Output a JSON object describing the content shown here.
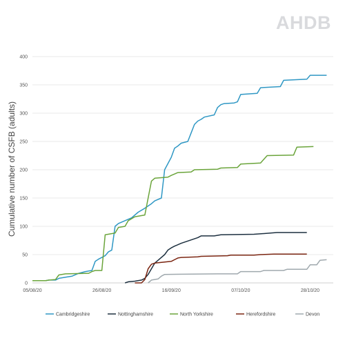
{
  "logo": {
    "text": "AHDB",
    "color": "#d9dadd"
  },
  "chart_data": {
    "type": "line",
    "title": "",
    "xlabel": "",
    "ylabel": "Cumulative number of CSFB (adults)",
    "ylim": [
      0,
      400
    ],
    "y_ticks": [
      0,
      50,
      100,
      150,
      200,
      250,
      300,
      350,
      400
    ],
    "xlim": [
      "2020-08-05",
      "2020-11-04"
    ],
    "x_ticks": [
      {
        "date": "2020-08-05",
        "label": "05/08/20"
      },
      {
        "date": "2020-08-26",
        "label": "26/08/20"
      },
      {
        "date": "2020-09-16",
        "label": "16/09/20"
      },
      {
        "date": "2020-10-07",
        "label": "07/10/20"
      },
      {
        "date": "2020-10-28",
        "label": "28/10/20"
      }
    ],
    "grid": "horizontal",
    "legend": "bottom",
    "series": [
      {
        "name": "Cambridgeshire",
        "color": "#2e97c4",
        "points": [
          [
            "2020-08-05",
            4
          ],
          [
            "2020-08-09",
            4
          ],
          [
            "2020-08-10",
            5
          ],
          [
            "2020-08-12",
            5
          ],
          [
            "2020-08-13",
            8
          ],
          [
            "2020-08-15",
            10
          ],
          [
            "2020-08-17",
            12
          ],
          [
            "2020-08-19",
            17
          ],
          [
            "2020-08-21",
            20
          ],
          [
            "2020-08-23",
            22
          ],
          [
            "2020-08-24",
            38
          ],
          [
            "2020-08-25",
            42
          ],
          [
            "2020-08-26",
            45
          ],
          [
            "2020-08-27",
            48
          ],
          [
            "2020-08-28",
            55
          ],
          [
            "2020-08-29",
            58
          ],
          [
            "2020-08-30",
            100
          ],
          [
            "2020-08-31",
            105
          ],
          [
            "2020-09-02",
            110
          ],
          [
            "2020-09-04",
            115
          ],
          [
            "2020-09-06",
            125
          ],
          [
            "2020-09-08",
            132
          ],
          [
            "2020-09-10",
            140
          ],
          [
            "2020-09-11",
            145
          ],
          [
            "2020-09-13",
            150
          ],
          [
            "2020-09-14",
            200
          ],
          [
            "2020-09-16",
            222
          ],
          [
            "2020-09-17",
            238
          ],
          [
            "2020-09-18",
            242
          ],
          [
            "2020-09-19",
            247
          ],
          [
            "2020-09-21",
            250
          ],
          [
            "2020-09-22",
            265
          ],
          [
            "2020-09-23",
            280
          ],
          [
            "2020-09-24",
            286
          ],
          [
            "2020-09-25",
            289
          ],
          [
            "2020-09-26",
            293
          ],
          [
            "2020-09-29",
            297
          ],
          [
            "2020-09-30",
            310
          ],
          [
            "2020-10-01",
            315
          ],
          [
            "2020-10-02",
            317
          ],
          [
            "2020-10-05",
            318
          ],
          [
            "2020-10-06",
            320
          ],
          [
            "2020-10-07",
            333
          ],
          [
            "2020-10-12",
            335
          ],
          [
            "2020-10-13",
            345
          ],
          [
            "2020-10-19",
            347
          ],
          [
            "2020-10-20",
            358
          ],
          [
            "2020-10-27",
            360
          ],
          [
            "2020-10-28",
            367
          ],
          [
            "2020-11-02",
            367
          ]
        ]
      },
      {
        "name": "Nottinghamshire",
        "color": "#1c2f3f",
        "points": [
          [
            "2020-09-02",
            0
          ],
          [
            "2020-09-03",
            2
          ],
          [
            "2020-09-05",
            3
          ],
          [
            "2020-09-07",
            5
          ],
          [
            "2020-09-08",
            8
          ],
          [
            "2020-09-09",
            15
          ],
          [
            "2020-09-10",
            25
          ],
          [
            "2020-09-11",
            35
          ],
          [
            "2020-09-12",
            40
          ],
          [
            "2020-09-14",
            50
          ],
          [
            "2020-09-15",
            58
          ],
          [
            "2020-09-16",
            62
          ],
          [
            "2020-09-17",
            65
          ],
          [
            "2020-09-19",
            70
          ],
          [
            "2020-09-21",
            74
          ],
          [
            "2020-09-24",
            80
          ],
          [
            "2020-09-25",
            83
          ],
          [
            "2020-09-29",
            83
          ],
          [
            "2020-10-01",
            85
          ],
          [
            "2020-10-11",
            86
          ],
          [
            "2020-10-16",
            88
          ],
          [
            "2020-10-18",
            89
          ],
          [
            "2020-10-27",
            89
          ]
        ]
      },
      {
        "name": "North Yorkshire",
        "color": "#6aa43a",
        "points": [
          [
            "2020-08-05",
            4
          ],
          [
            "2020-08-09",
            4
          ],
          [
            "2020-08-10",
            5
          ],
          [
            "2020-08-12",
            6
          ],
          [
            "2020-08-13",
            14
          ],
          [
            "2020-08-15",
            16
          ],
          [
            "2020-08-22",
            17
          ],
          [
            "2020-08-23",
            20
          ],
          [
            "2020-08-24",
            22
          ],
          [
            "2020-08-26",
            22
          ],
          [
            "2020-08-27",
            85
          ],
          [
            "2020-08-30",
            88
          ],
          [
            "2020-08-31",
            98
          ],
          [
            "2020-09-02",
            100
          ],
          [
            "2020-09-03",
            110
          ],
          [
            "2020-09-05",
            117
          ],
          [
            "2020-09-08",
            120
          ],
          [
            "2020-09-09",
            150
          ],
          [
            "2020-09-10",
            180
          ],
          [
            "2020-09-11",
            185
          ],
          [
            "2020-09-15",
            187
          ],
          [
            "2020-09-16",
            190
          ],
          [
            "2020-09-18",
            195
          ],
          [
            "2020-09-22",
            196
          ],
          [
            "2020-09-23",
            200
          ],
          [
            "2020-09-30",
            201
          ],
          [
            "2020-10-01",
            203
          ],
          [
            "2020-10-06",
            204
          ],
          [
            "2020-10-07",
            210
          ],
          [
            "2020-10-13",
            212
          ],
          [
            "2020-10-15",
            225
          ],
          [
            "2020-10-23",
            226
          ],
          [
            "2020-10-24",
            240
          ],
          [
            "2020-10-29",
            241
          ]
        ]
      },
      {
        "name": "Herefordshire",
        "color": "#7a2410",
        "points": [
          [
            "2020-09-05",
            0
          ],
          [
            "2020-09-07",
            0
          ],
          [
            "2020-09-08",
            6
          ],
          [
            "2020-09-09",
            25
          ],
          [
            "2020-09-10",
            33
          ],
          [
            "2020-09-11",
            35
          ],
          [
            "2020-09-16",
            38
          ],
          [
            "2020-09-18",
            44
          ],
          [
            "2020-09-19",
            45
          ],
          [
            "2020-09-24",
            46
          ],
          [
            "2020-09-25",
            47
          ],
          [
            "2020-10-03",
            48
          ],
          [
            "2020-10-04",
            49
          ],
          [
            "2020-10-11",
            49
          ],
          [
            "2020-10-13",
            50
          ],
          [
            "2020-10-17",
            51
          ],
          [
            "2020-10-27",
            51
          ]
        ]
      },
      {
        "name": "Devon",
        "color": "#9fa8ad",
        "points": [
          [
            "2020-09-09",
            0
          ],
          [
            "2020-09-10",
            5
          ],
          [
            "2020-09-12",
            7
          ],
          [
            "2020-09-13",
            12
          ],
          [
            "2020-09-14",
            15
          ],
          [
            "2020-09-30",
            16
          ],
          [
            "2020-10-06",
            16
          ],
          [
            "2020-10-07",
            20
          ],
          [
            "2020-10-13",
            20
          ],
          [
            "2020-10-14",
            22
          ],
          [
            "2020-10-20",
            22
          ],
          [
            "2020-10-21",
            24
          ],
          [
            "2020-10-27",
            24
          ],
          [
            "2020-10-28",
            32
          ],
          [
            "2020-10-30",
            32
          ],
          [
            "2020-10-31",
            40
          ],
          [
            "2020-11-02",
            41
          ]
        ]
      }
    ]
  }
}
